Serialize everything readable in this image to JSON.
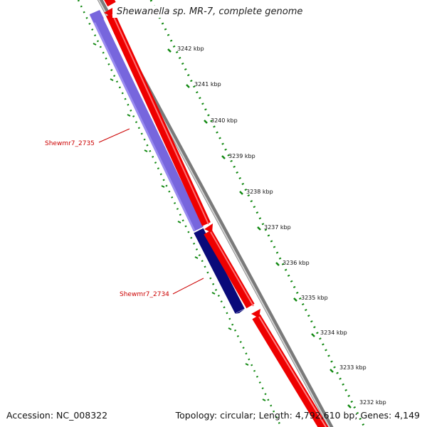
{
  "title": "Shewanella sp. MR-7, complete genome",
  "footer": {
    "accession": "Accession: NC_008322",
    "summary": "Topology: circular; Length: 4,792,610 bp; Genes: 4,149"
  },
  "scale": {
    "unit": "kbp",
    "ticks": [
      "3242 kbp",
      "3241 kbp",
      "3240 kbp",
      "3239 kbp",
      "3238 kbp",
      "3237 kbp",
      "3236 kbp",
      "3235 kbp",
      "3234 kbp",
      "3233 kbp",
      "3232 kbp"
    ]
  },
  "genes": [
    {
      "name": "Shewmr7_2735",
      "color": "#7766dd"
    },
    {
      "name": "Shewmr7_2734",
      "color": "#0a0a7a"
    }
  ],
  "colors": {
    "forward_strand": "#ee0000",
    "backbone": "#888888",
    "tick_dots": "#118811",
    "gene_label": "#cc0000"
  }
}
